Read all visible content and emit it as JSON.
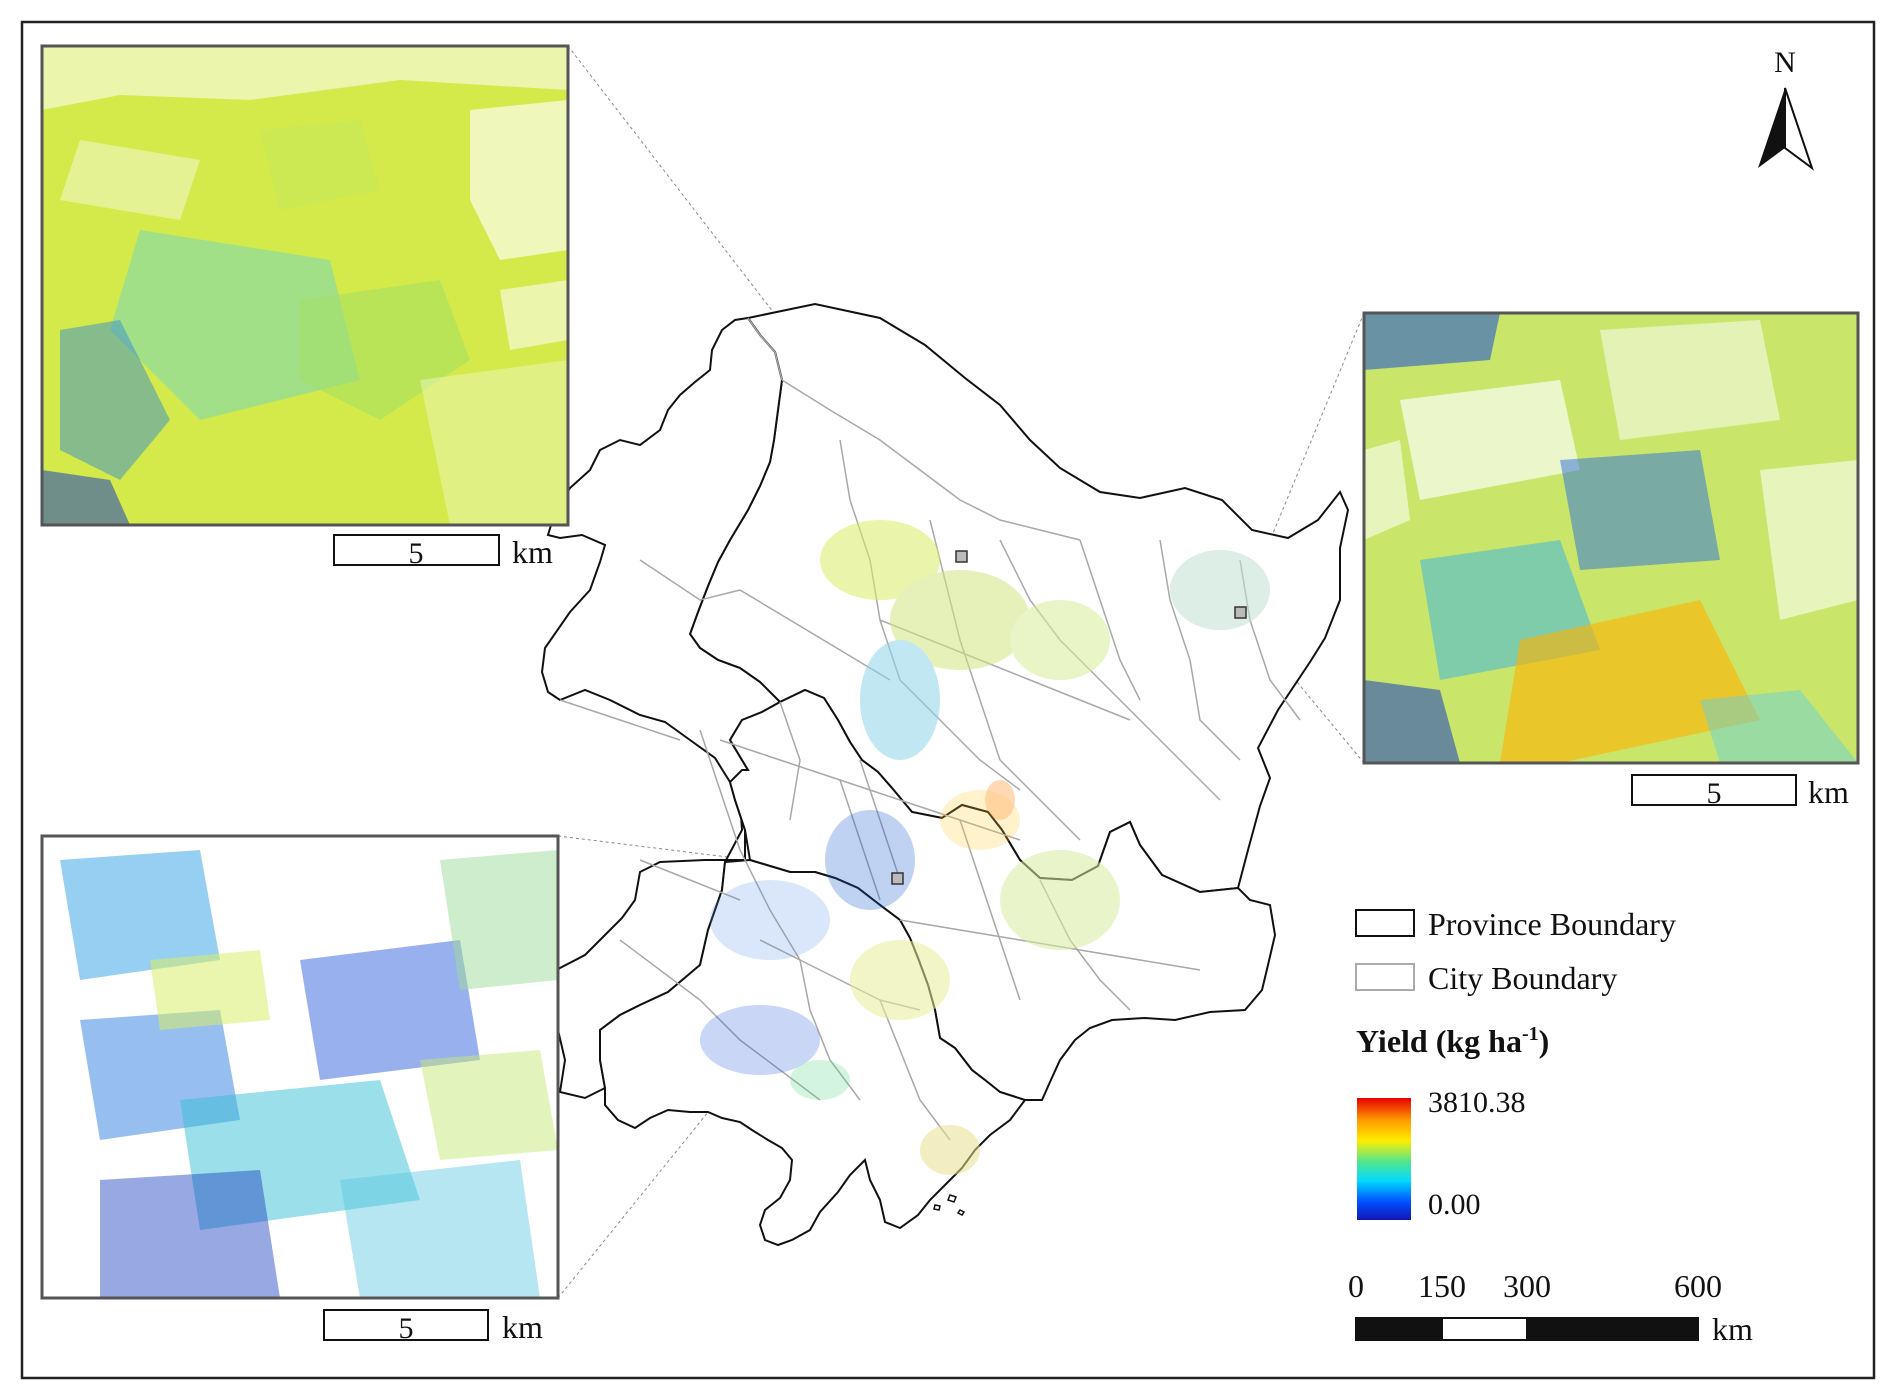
{
  "north_arrow": {
    "label": "N"
  },
  "insets": [
    {
      "id": "northwest",
      "scale_value": "5",
      "scale_unit": "km"
    },
    {
      "id": "east",
      "scale_value": "5",
      "scale_unit": "km"
    },
    {
      "id": "southwest",
      "scale_value": "5",
      "scale_unit": "km"
    }
  ],
  "legend": {
    "province_label": "Province Boundary",
    "city_label": "City Boundary",
    "yield_title": "Yield (kg ha",
    "yield_title_exp": "-1",
    "yield_title_close": ")",
    "max_label": "3810.38",
    "min_label": "0.00",
    "ramp_colors": [
      "#e60000",
      "#ff9900",
      "#ffee00",
      "#55e68a",
      "#00d9ff",
      "#0050ff",
      "#1414b4"
    ]
  },
  "scale_bar": {
    "ticks": [
      "0",
      "150",
      "300",
      "600"
    ],
    "unit": "km"
  }
}
